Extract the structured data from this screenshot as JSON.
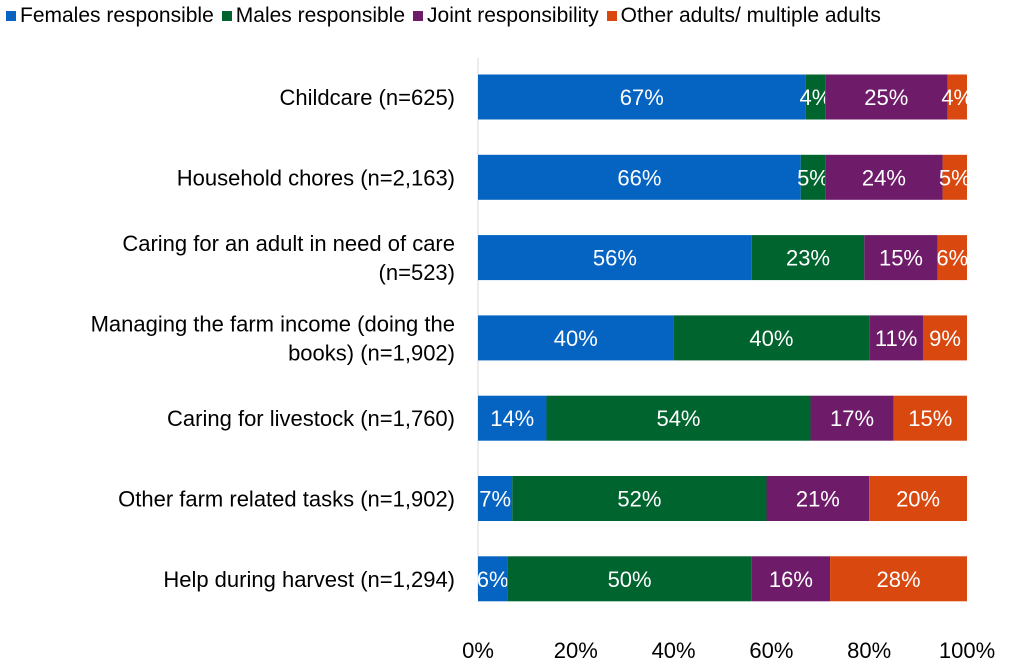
{
  "chart_data": {
    "type": "bar",
    "orientation": "horizontal",
    "stacked": true,
    "categories": [
      [
        "Childcare (n=625)"
      ],
      [
        "Household chores (n=2,163)"
      ],
      [
        "Caring for an adult in need of care",
        "(n=523)"
      ],
      [
        "Managing the farm income (doing the",
        "books) (n=1,902)"
      ],
      [
        "Caring for livestock (n=1,760)"
      ],
      [
        "Other farm related tasks (n=1,902)"
      ],
      [
        "Help during harvest (n=1,294)"
      ]
    ],
    "series": [
      {
        "name": "Females responsible",
        "color": "#0563C1",
        "values": [
          67,
          66,
          56,
          40,
          14,
          7,
          6
        ]
      },
      {
        "name": "Males responsible",
        "color": "#00642E",
        "values": [
          4,
          5,
          23,
          40,
          54,
          52,
          50
        ]
      },
      {
        "name": "Joint responsibility",
        "color": "#6E1C6A",
        "values": [
          25,
          24,
          15,
          11,
          17,
          21,
          16
        ]
      },
      {
        "name": "Other adults/ multiple adults",
        "color": "#D9480F",
        "values": [
          4,
          5,
          6,
          9,
          15,
          20,
          28
        ]
      }
    ],
    "xlim": [
      0,
      100
    ],
    "xticks": [
      "0%",
      "20%",
      "40%",
      "60%",
      "80%",
      "100%"
    ],
    "legend_position": "top",
    "grid": false
  }
}
